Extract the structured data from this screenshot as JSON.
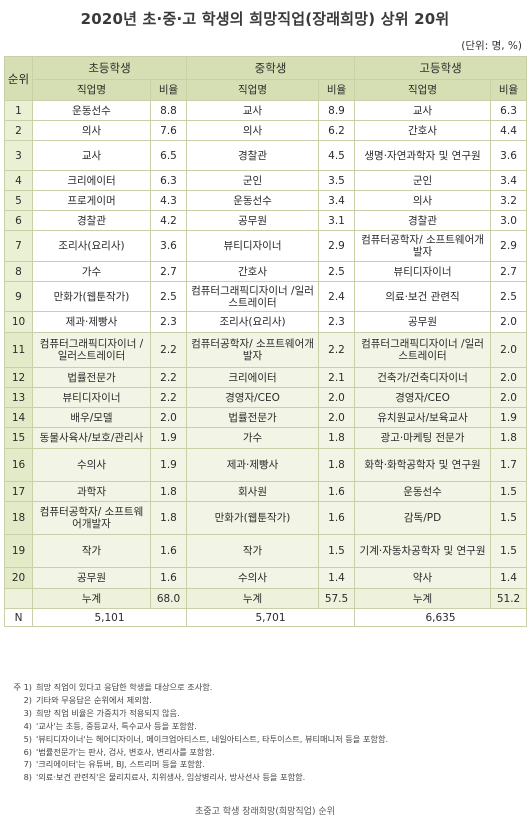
{
  "title": "2020년 초·중·고 학생의 희망직업(장래희망) 상위 20위",
  "unit": "(단위: 명, %)",
  "headers": {
    "rank": "순위",
    "groups": [
      "초등학생",
      "중학생",
      "고등학생"
    ],
    "job": "직업명",
    "ratio": "비율"
  },
  "rows": [
    {
      "rank": "1",
      "e": [
        "운동선수",
        "8.8"
      ],
      "m": [
        "교사",
        "8.9"
      ],
      "h": [
        "교사",
        "6.3"
      ]
    },
    {
      "rank": "2",
      "e": [
        "의사",
        "7.6"
      ],
      "m": [
        "의사",
        "6.2"
      ],
      "h": [
        "간호사",
        "4.4"
      ]
    },
    {
      "rank": "3",
      "e": [
        "교사",
        "6.5"
      ],
      "m": [
        "경찰관",
        "4.5"
      ],
      "h": [
        "생명·자연과학자 및 연구원",
        "3.6"
      ]
    },
    {
      "rank": "4",
      "e": [
        "크리에이터",
        "6.3"
      ],
      "m": [
        "군인",
        "3.5"
      ],
      "h": [
        "군인",
        "3.4"
      ]
    },
    {
      "rank": "5",
      "e": [
        "프로게이머",
        "4.3"
      ],
      "m": [
        "운동선수",
        "3.4"
      ],
      "h": [
        "의사",
        "3.2"
      ]
    },
    {
      "rank": "6",
      "e": [
        "경찰관",
        "4.2"
      ],
      "m": [
        "공무원",
        "3.1"
      ],
      "h": [
        "경찰관",
        "3.0"
      ]
    },
    {
      "rank": "7",
      "e": [
        "조리사(요리사)",
        "3.6"
      ],
      "m": [
        "뷰티디자이너",
        "2.9"
      ],
      "h": [
        "컴퓨터공학자/ 소프트웨어개발자",
        "2.9"
      ]
    },
    {
      "rank": "8",
      "e": [
        "가수",
        "2.7"
      ],
      "m": [
        "간호사",
        "2.5"
      ],
      "h": [
        "뷰티디자이너",
        "2.7"
      ]
    },
    {
      "rank": "9",
      "e": [
        "만화가(웹툰작가)",
        "2.5"
      ],
      "m": [
        "컴퓨터그래픽디자이너 /일러스트레이터",
        "2.4"
      ],
      "h": [
        "의료·보건 관련직",
        "2.5"
      ]
    },
    {
      "rank": "10",
      "e": [
        "제과·제빵사",
        "2.3"
      ],
      "m": [
        "조리사(요리사)",
        "2.3"
      ],
      "h": [
        "공무원",
        "2.0"
      ]
    },
    {
      "rank": "11",
      "e": [
        "컴퓨터그래픽디자이너 /일러스트레이터",
        "2.2"
      ],
      "m": [
        "컴퓨터공학자/ 소프트웨어개발자",
        "2.2"
      ],
      "h": [
        "컴퓨터그래픽디자이너 /일러스트레이터",
        "2.0"
      ]
    },
    {
      "rank": "12",
      "e": [
        "법률전문가",
        "2.2"
      ],
      "m": [
        "크리에이터",
        "2.1"
      ],
      "h": [
        "건축가/건축디자이너",
        "2.0"
      ]
    },
    {
      "rank": "13",
      "e": [
        "뷰티디자이너",
        "2.2"
      ],
      "m": [
        "경영자/CEO",
        "2.0"
      ],
      "h": [
        "경영자/CEO",
        "2.0"
      ]
    },
    {
      "rank": "14",
      "e": [
        "배우/모델",
        "2.0"
      ],
      "m": [
        "법률전문가",
        "2.0"
      ],
      "h": [
        "유치원교사/보육교사",
        "1.9"
      ]
    },
    {
      "rank": "15",
      "e": [
        "동물사육사/보호/관리사",
        "1.9"
      ],
      "m": [
        "가수",
        "1.8"
      ],
      "h": [
        "광고·마케팅 전문가",
        "1.8"
      ]
    },
    {
      "rank": "16",
      "e": [
        "수의사",
        "1.9"
      ],
      "m": [
        "제과·제빵사",
        "1.8"
      ],
      "h": [
        "화학·화학공학자 및 연구원",
        "1.7"
      ]
    },
    {
      "rank": "17",
      "e": [
        "과학자",
        "1.8"
      ],
      "m": [
        "회사원",
        "1.6"
      ],
      "h": [
        "운동선수",
        "1.5"
      ]
    },
    {
      "rank": "18",
      "e": [
        "컴퓨터공학자/ 소프트웨어개발자",
        "1.8"
      ],
      "m": [
        "만화가(웹툰작가)",
        "1.6"
      ],
      "h": [
        "감독/PD",
        "1.5"
      ]
    },
    {
      "rank": "19",
      "e": [
        "작가",
        "1.6"
      ],
      "m": [
        "작가",
        "1.5"
      ],
      "h": [
        "기계·자동차공학자 및 연구원",
        "1.5"
      ]
    },
    {
      "rank": "20",
      "e": [
        "공무원",
        "1.6"
      ],
      "m": [
        "수의사",
        "1.4"
      ],
      "h": [
        "약사",
        "1.4"
      ]
    }
  ],
  "sum": {
    "label": "누계",
    "e": "68.0",
    "m": "57.5",
    "h": "51.2"
  },
  "n": {
    "label": "N",
    "e": "5,101",
    "m": "5,701",
    "h": "6,635"
  },
  "notes": [
    {
      "prefix": "주 1)",
      "text": "희망 직업이 있다고 응답한 학생을 대상으로 조사함."
    },
    {
      "prefix": "2)",
      "text": "기타와 무응답은 순위에서 제외함."
    },
    {
      "prefix": "3)",
      "text": "희망 직업 비율은 가중치가 적용되지 않음."
    },
    {
      "prefix": "4)",
      "text": "'교사'는 초등, 중등교사, 특수교사 등을 포함함."
    },
    {
      "prefix": "5)",
      "text": "'뷰티디자이너'는 헤어디자이너, 메이크업아티스트, 네일아티스트, 타투이스트, 뷰티매니저 등을 포함함."
    },
    {
      "prefix": "6)",
      "text": "'법률전문가'는 판사, 검사, 변호사, 변리사를 포함함."
    },
    {
      "prefix": "7)",
      "text": "'크리에이터'는 유튜버, BJ, 스트리머 등을 포함함."
    },
    {
      "prefix": "8)",
      "text": "'의료·보건 관련직'은 물리치료사, 치위생사, 임상병리사, 방사선사 등을 포함함."
    }
  ],
  "caption": "초중고 학생 장래희망(희망직업) 순위"
}
